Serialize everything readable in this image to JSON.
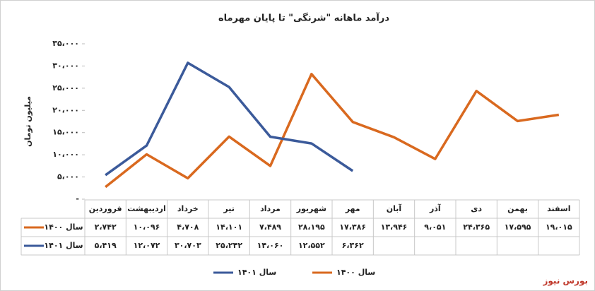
{
  "chart_data": {
    "type": "line",
    "title": "درآمد ماهانه \"شرنگی\" تا پایان مهرماه",
    "y_label": "میلیون تومان",
    "watermark": "بورس نیوز",
    "categories": [
      "فروردین",
      "اردیبهشت",
      "خرداد",
      "تیر",
      "مرداد",
      "شهریور",
      "مهر",
      "آبان",
      "آذر",
      "دی",
      "بهمن",
      "اسفند"
    ],
    "series": [
      {
        "name": "سال ۱۴۰۰",
        "color": "#d9691f",
        "values": [
          2742,
          10096,
          4708,
          14101,
          7489,
          28195,
          17386,
          13946,
          9051,
          24365,
          17595,
          19015
        ],
        "value_labels": [
          "۲،۷۴۲",
          "۱۰،۰۹۶",
          "۴،۷۰۸",
          "۱۴،۱۰۱",
          "۷،۴۸۹",
          "۲۸،۱۹۵",
          "۱۷،۳۸۶",
          "۱۳،۹۴۶",
          "۹،۰۵۱",
          "۲۴،۳۶۵",
          "۱۷،۵۹۵",
          "۱۹،۰۱۵"
        ]
      },
      {
        "name": "سال ۱۴۰۱",
        "color": "#3b5a9a",
        "values": [
          5419,
          12072,
          30703,
          25242,
          14060,
          12552,
          6362,
          null,
          null,
          null,
          null,
          null
        ],
        "value_labels": [
          "۵،۴۱۹",
          "۱۲،۰۷۲",
          "۳۰،۷۰۳",
          "۲۵،۲۴۲",
          "۱۴،۰۶۰",
          "۱۲،۵۵۲",
          "۶،۳۶۲",
          null,
          null,
          null,
          null,
          null
        ]
      }
    ],
    "ylim": [
      0,
      35000
    ],
    "yticks": [
      {
        "value": 0,
        "label": "-"
      },
      {
        "value": 5000,
        "label": "۵،۰۰۰"
      },
      {
        "value": 10000,
        "label": "۱۰،۰۰۰"
      },
      {
        "value": 15000,
        "label": "۱۵،۰۰۰"
      },
      {
        "value": 20000,
        "label": "۲۰،۰۰۰"
      },
      {
        "value": 25000,
        "label": "۲۵،۰۰۰"
      },
      {
        "value": 30000,
        "label": "۳۰،۰۰۰"
      },
      {
        "value": 35000,
        "label": "۳۵،۰۰۰"
      }
    ],
    "grid": false,
    "legend": "bottom"
  }
}
